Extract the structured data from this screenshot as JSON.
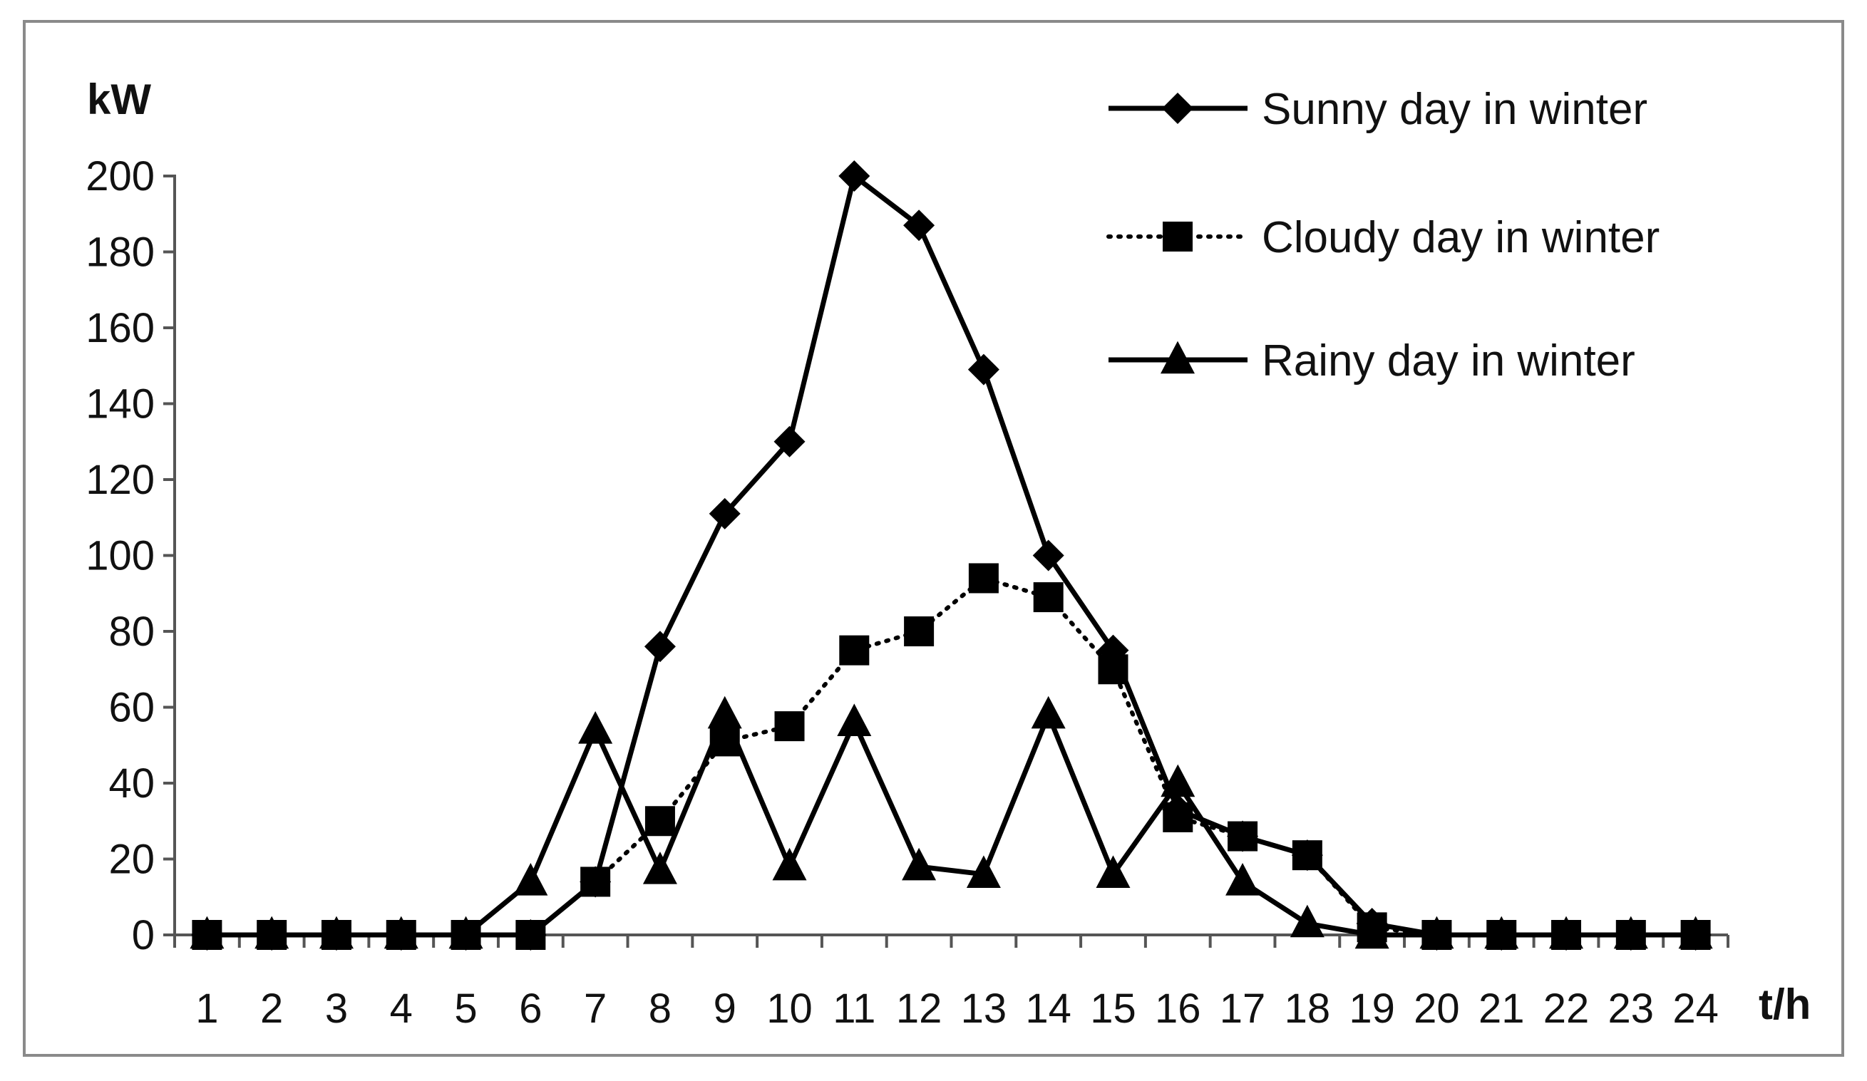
{
  "chart_data": {
    "type": "line",
    "title": "",
    "ylabel": "kW",
    "xlabel": "t/h",
    "ylim": [
      0,
      200
    ],
    "yticks": [
      0,
      20,
      40,
      60,
      80,
      100,
      120,
      140,
      160,
      180,
      200
    ],
    "x": [
      1,
      2,
      3,
      4,
      5,
      6,
      7,
      8,
      9,
      10,
      11,
      12,
      13,
      14,
      15,
      16,
      17,
      18,
      19,
      20,
      21,
      22,
      23,
      24
    ],
    "grid": false,
    "legend_position": "top-right",
    "series": [
      {
        "name": "Sunny day in winter",
        "marker": "diamond",
        "line": "solid",
        "values": [
          0,
          0,
          0,
          0,
          0,
          0,
          14,
          76,
          111,
          130,
          200,
          187,
          149,
          100,
          75,
          33,
          26,
          21,
          3,
          0,
          0,
          0,
          0,
          0
        ]
      },
      {
        "name": "Cloudy day in winter",
        "marker": "square",
        "line": "dotted",
        "values": [
          0,
          0,
          0,
          0,
          0,
          0,
          14,
          30,
          51,
          55,
          75,
          80,
          94,
          89,
          70,
          31,
          26,
          21,
          2,
          0,
          0,
          0,
          0,
          0
        ]
      },
      {
        "name": "Rainy day in winter",
        "marker": "triangle",
        "line": "solid",
        "values": [
          0,
          0,
          0,
          0,
          0,
          14,
          54,
          17,
          58,
          18,
          56,
          18,
          16,
          58,
          16,
          40,
          14,
          3,
          0,
          0,
          0,
          0,
          0,
          0
        ]
      }
    ],
    "colors": {
      "line": "#000000",
      "frame": "#8a8a8a",
      "axis": "#555555"
    }
  }
}
